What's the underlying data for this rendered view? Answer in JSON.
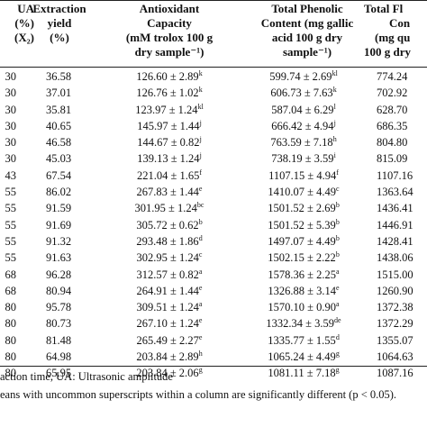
{
  "table": {
    "headers": {
      "ua": [
        "UA",
        "(%)",
        "(X₂)"
      ],
      "extraction": [
        "Extraction",
        "yield",
        "(%)"
      ],
      "antioxidant": [
        "Antioxidant",
        "Capacity",
        "(mM trolox 100 g",
        "dry sample⁻¹)"
      ],
      "phenolic": [
        "Total Phenolic",
        "Content (mg gallic",
        "acid 100 g dry",
        "sample⁻¹)"
      ],
      "flavonoid": [
        "Total Fl",
        "Con",
        "(mg qu",
        "100 g dry"
      ]
    },
    "rows": [
      {
        "ua": "30",
        "yield": "36.58",
        "anti": "126.60 ± 2.89",
        "anti_sup": "k",
        "phen": "599.74 ± 2.69",
        "phen_sup": "kl",
        "flav": "774.24"
      },
      {
        "ua": "30",
        "yield": "37.01",
        "anti": "126.76 ± 1.02",
        "anti_sup": "k",
        "phen": "606.73 ± 7.63",
        "phen_sup": "k",
        "flav": "702.92"
      },
      {
        "ua": "30",
        "yield": "35.81",
        "anti": "123.97 ± 1.24",
        "anti_sup": "kl",
        "phen": "587.04 ± 6.29",
        "phen_sup": "l",
        "flav": "628.70"
      },
      {
        "ua": "30",
        "yield": "40.65",
        "anti": "145.97 ± 1.44",
        "anti_sup": "j",
        "phen": "666.42 ± 4.94",
        "phen_sup": "j",
        "flav": "686.35"
      },
      {
        "ua": "30",
        "yield": "46.58",
        "anti": "144.67 ± 0.82",
        "anti_sup": "j",
        "phen": "763.59 ± 7.18",
        "phen_sup": "h",
        "flav": "804.80"
      },
      {
        "ua": "30",
        "yield": "45.03",
        "anti": "139.13 ± 1.24",
        "anti_sup": "j",
        "phen": "738.19 ± 3.59",
        "phen_sup": "i",
        "flav": "815.09"
      },
      {
        "ua": "43",
        "yield": "67.54",
        "anti": "221.04 ± 1.65",
        "anti_sup": "f",
        "phen": "1107.15 ± 4.94",
        "phen_sup": "f",
        "flav": "1107.16"
      },
      {
        "ua": "55",
        "yield": "86.02",
        "anti": "267.83 ± 1.44",
        "anti_sup": "e",
        "phen": "1410.07 ± 4.49",
        "phen_sup": "c",
        "flav": "1363.64"
      },
      {
        "ua": "55",
        "yield": "91.59",
        "anti": "301.95 ± 1.24",
        "anti_sup": "bc",
        "phen": "1501.52 ± 2.69",
        "phen_sup": "b",
        "flav": "1436.41"
      },
      {
        "ua": "55",
        "yield": "91.69",
        "anti": "305.72 ± 0.62",
        "anti_sup": "b",
        "phen": "1501.52 ± 5.39",
        "phen_sup": "b",
        "flav": "1446.91"
      },
      {
        "ua": "55",
        "yield": "91.32",
        "anti": "293.48 ± 1.86",
        "anti_sup": "d",
        "phen": "1497.07 ± 4.49",
        "phen_sup": "b",
        "flav": "1428.41"
      },
      {
        "ua": "55",
        "yield": "91.63",
        "anti": "302.95 ± 1.24",
        "anti_sup": "c",
        "phen": "1502.15 ± 2.22",
        "phen_sup": "b",
        "flav": "1438.06"
      },
      {
        "ua": "68",
        "yield": "96.28",
        "anti": "312.57 ± 0.82",
        "anti_sup": "a",
        "phen": "1578.36 ± 2.25",
        "phen_sup": "a",
        "flav": "1515.00"
      },
      {
        "ua": "68",
        "yield": "80.94",
        "anti": "264.91 ± 1.44",
        "anti_sup": "e",
        "phen": "1326.88 ± 3.14",
        "phen_sup": "e",
        "flav": "1260.90"
      },
      {
        "ua": "80",
        "yield": "95.78",
        "anti": "309.51 ± 1.24",
        "anti_sup": "a",
        "phen": "1570.10 ± 0.90",
        "phen_sup": "a",
        "flav": "1372.38"
      },
      {
        "ua": "80",
        "yield": "80.73",
        "anti": "267.10 ± 1.24",
        "anti_sup": "e",
        "phen": "1332.34 ± 3.59",
        "phen_sup": "de",
        "flav": "1372.29"
      },
      {
        "ua": "80",
        "yield": "81.48",
        "anti": "265.49 ± 2.27",
        "anti_sup": "e",
        "phen": "1335.77 ± 1.55",
        "phen_sup": "d",
        "flav": "1355.07"
      },
      {
        "ua": "80",
        "yield": "64.98",
        "anti": "203.84 ± 2.89",
        "anti_sup": "h",
        "phen": "1065.24 ± 4.49",
        "phen_sup": "g",
        "flav": "1064.63"
      },
      {
        "ua": "80",
        "yield": "65.95",
        "anti": "203.84 ± 2.06",
        "anti_sup": "g",
        "phen": "1081.11 ± 7.18",
        "phen_sup": "g",
        "flav": "1087.16"
      }
    ]
  },
  "footnotes": {
    "line1": "action time, UA: Ultrasonic amplitude",
    "line2": "eans with uncommon superscripts within a column are significantly different (p < 0.05)."
  }
}
